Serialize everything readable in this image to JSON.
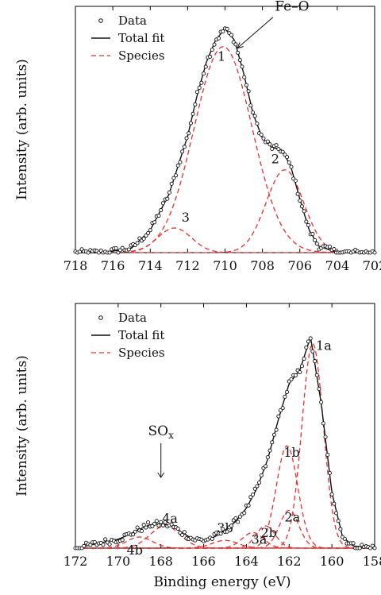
{
  "figure": {
    "shared_xlabel": "Binding energy (eV)"
  },
  "chart_data": [
    {
      "type": "line",
      "title": "",
      "ylabel": "Intensity (arb. units)",
      "xlabel": "",
      "xlim": [
        718,
        702
      ],
      "ylim": [
        0,
        1.1
      ],
      "x_reversed": true,
      "xticks": [
        718,
        716,
        714,
        712,
        710,
        708,
        706,
        704,
        702
      ],
      "grid": false,
      "legend_position": "top-left",
      "legend": [
        "Data",
        "Total fit",
        "Species"
      ],
      "annotations": [
        {
          "text": "Fe–O",
          "x": 709.6,
          "y": 0.92
        }
      ],
      "species": [
        {
          "label": "1",
          "center": 710.1,
          "height": 0.92,
          "sigma": 1.55
        },
        {
          "label": "2",
          "center": 706.8,
          "height": 0.37,
          "sigma": 1.0
        },
        {
          "label": "3",
          "center": 712.7,
          "height": 0.11,
          "sigma": 0.9
        }
      ],
      "total_fit": {
        "x": [
          718,
          716.5,
          715,
          714,
          713,
          712,
          711.5,
          711,
          710.5,
          710,
          709.5,
          709,
          708.5,
          708,
          707.5,
          707,
          706.5,
          706,
          705.5,
          705,
          704,
          703,
          702
        ],
        "y": [
          0.0,
          0.0,
          0.02,
          0.1,
          0.26,
          0.52,
          0.7,
          0.85,
          0.95,
          1.0,
          0.95,
          0.8,
          0.62,
          0.51,
          0.47,
          0.46,
          0.39,
          0.24,
          0.1,
          0.03,
          0.0,
          0.0,
          0.0
        ]
      }
    },
    {
      "type": "line",
      "title": "",
      "ylabel": "Intensity (arb. units)",
      "xlabel": "Binding energy (eV)",
      "xlim": [
        172,
        158
      ],
      "ylim": [
        0,
        1.1
      ],
      "x_reversed": true,
      "xticks": [
        172,
        170,
        168,
        166,
        164,
        162,
        160,
        158
      ],
      "grid": false,
      "legend_position": "top-left",
      "legend": [
        "Data",
        "Total fit",
        "Species"
      ],
      "annotations": [
        {
          "text": "SOx",
          "x": 168.0,
          "y": 0.3
        }
      ],
      "species": [
        {
          "label": "1a",
          "center": 160.9,
          "height": 0.92,
          "sigma": 0.5
        },
        {
          "label": "1b",
          "center": 162.1,
          "height": 0.46,
          "sigma": 0.5
        },
        {
          "label": "2a",
          "center": 162.0,
          "height": 0.17,
          "sigma": 0.45
        },
        {
          "label": "2b",
          "center": 163.1,
          "height": 0.1,
          "sigma": 0.45
        },
        {
          "label": "3a",
          "center": 163.7,
          "height": 0.07,
          "sigma": 0.5
        },
        {
          "label": "3b",
          "center": 165.0,
          "height": 0.035,
          "sigma": 0.6
        },
        {
          "label": "4a",
          "center": 167.8,
          "height": 0.1,
          "sigma": 0.7
        },
        {
          "label": "4b",
          "center": 169.0,
          "height": 0.05,
          "sigma": 0.6
        }
      ],
      "total_fit": {
        "x": [
          172,
          171,
          170,
          169.5,
          169,
          168.5,
          168,
          167.5,
          167,
          166.5,
          166,
          165.5,
          165,
          164.5,
          164,
          163.5,
          163,
          162.5,
          162,
          161.5,
          161,
          160.5,
          160,
          159.5,
          159,
          158
        ],
        "y": [
          0.0,
          0.02,
          0.04,
          0.06,
          0.085,
          0.105,
          0.11,
          0.1,
          0.07,
          0.04,
          0.035,
          0.05,
          0.08,
          0.12,
          0.18,
          0.27,
          0.4,
          0.58,
          0.74,
          0.8,
          0.95,
          0.65,
          0.25,
          0.05,
          0.01,
          0.0
        ]
      }
    }
  ]
}
